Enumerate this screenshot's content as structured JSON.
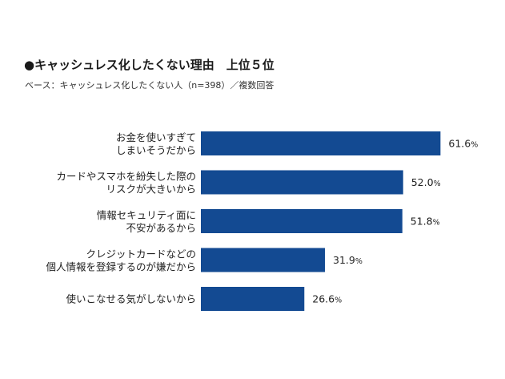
{
  "title": "●キャッシュレス化したくない理由　上位５位",
  "subtitle": "ベース：キャッシュレス化したくない人（n=398）／複数回答",
  "chart_data": {
    "type": "bar",
    "orientation": "horizontal",
    "title": "●キャッシュレス化したくない理由　上位５位",
    "subtitle": "ベース：キャッシュレス化したくない人（n=398）／複数回答",
    "categories": [
      [
        "お金を使いすぎて",
        "しまいそうだから"
      ],
      [
        "カードやスマホを紛失した際の",
        "リスクが大きいから"
      ],
      [
        "情報セキュリティ面に",
        "不安があるから"
      ],
      [
        "クレジットカードなどの",
        "個人情報を登録するのが嫌だから"
      ],
      [
        "使いこなせる気がしないから"
      ]
    ],
    "values": [
      61.6,
      52.0,
      51.8,
      31.9,
      26.6
    ],
    "value_labels": [
      "61.6",
      "52.0",
      "51.8",
      "31.9",
      "26.6"
    ],
    "unit": "%",
    "xlim": [
      0,
      100
    ],
    "grid": false,
    "legend": "none",
    "bar_color": "#134a92"
  }
}
